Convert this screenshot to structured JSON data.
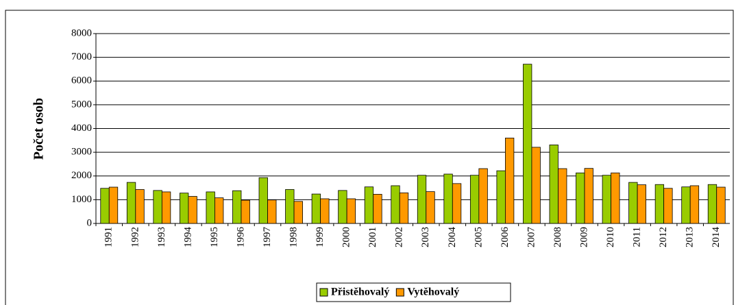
{
  "chart_data": {
    "type": "bar",
    "y_label": "Počet osob",
    "categories": [
      "1991",
      "1992",
      "1993",
      "1994",
      "1995",
      "1996",
      "1997",
      "1998",
      "1999",
      "2000",
      "2001",
      "2002",
      "2003",
      "2004",
      "2005",
      "2006",
      "2007",
      "2008",
      "2009",
      "2010",
      "2011",
      "2012",
      "2013",
      "2014"
    ],
    "series": [
      {
        "name": "Přistěhovalý",
        "color": "#99cc00",
        "values": [
          1480,
          1730,
          1390,
          1280,
          1330,
          1380,
          1930,
          1430,
          1240,
          1390,
          1540,
          1590,
          2030,
          2080,
          2030,
          2220,
          6710,
          3310,
          2130,
          2030,
          1730,
          1640,
          1540,
          1640
        ]
      },
      {
        "name": "Vytěhovalý",
        "color": "#ff9900",
        "values": [
          1530,
          1430,
          1330,
          1140,
          1080,
          980,
          990,
          930,
          1040,
          1040,
          1230,
          1290,
          1340,
          1680,
          2310,
          3600,
          3210,
          2310,
          2320,
          2130,
          1630,
          1480,
          1590,
          1530
        ]
      }
    ],
    "ylim": [
      0,
      8000
    ],
    "yticks": [
      0,
      1000,
      2000,
      3000,
      4000,
      5000,
      6000,
      7000,
      8000
    ],
    "grid": true,
    "legend": "bottom"
  }
}
